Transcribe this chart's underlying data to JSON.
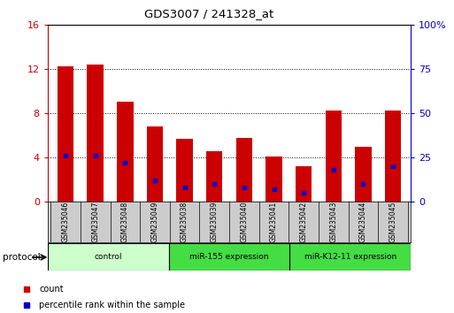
{
  "title": "GDS3007 / 241328_at",
  "categories": [
    "GSM235046",
    "GSM235047",
    "GSM235048",
    "GSM235049",
    "GSM235038",
    "GSM235039",
    "GSM235040",
    "GSM235041",
    "GSM235042",
    "GSM235043",
    "GSM235044",
    "GSM235045"
  ],
  "count_values": [
    12.3,
    12.45,
    9.1,
    6.8,
    5.7,
    4.6,
    5.8,
    4.1,
    3.2,
    8.3,
    5.0,
    8.3
  ],
  "percentile_values": [
    26,
    26,
    22,
    12,
    8,
    10,
    8,
    7,
    5,
    18,
    10,
    20
  ],
  "left_ylim": [
    0,
    16
  ],
  "right_ylim": [
    0,
    100
  ],
  "left_yticks": [
    0,
    4,
    8,
    12,
    16
  ],
  "right_yticks": [
    0,
    25,
    50,
    75,
    100
  ],
  "right_yticklabels": [
    "0",
    "25",
    "50",
    "75",
    "100%"
  ],
  "bar_color": "#cc0000",
  "dot_color": "#0000cc",
  "protocol_groups": [
    {
      "label": "control",
      "start": 0,
      "end": 3,
      "color": "#ccffcc"
    },
    {
      "label": "miR-155 expression",
      "start": 4,
      "end": 7,
      "color": "#44dd44"
    },
    {
      "label": "miR-K12-11 expression",
      "start": 8,
      "end": 11,
      "color": "#44dd44"
    }
  ],
  "legend_items": [
    {
      "label": "count",
      "color": "#cc0000"
    },
    {
      "label": "percentile rank within the sample",
      "color": "#0000cc"
    }
  ],
  "protocol_label": "protocol",
  "tick_label_color_left": "#cc0000",
  "tick_label_color_right": "#0000cc"
}
